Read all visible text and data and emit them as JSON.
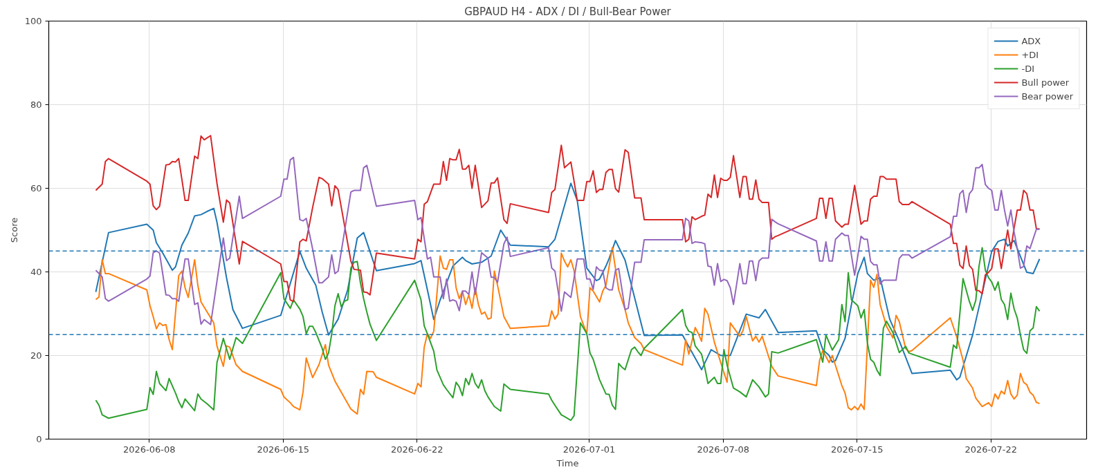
{
  "chart_data": {
    "type": "line",
    "title": "GBPAUD H4 - ADX / DI / Bull-Bear Power",
    "xlabel": "Time",
    "ylabel": "Score",
    "xlim": [
      "2026-06-02T18:00",
      "2026-07-27T00:00"
    ],
    "xticks": [
      "2026-06-08",
      "2026-06-15",
      "2026-06-22",
      "2026-07-01",
      "2026-07-08",
      "2026-07-15",
      "2026-07-22"
    ],
    "ylim": [
      0,
      100
    ],
    "yticks": [
      0,
      20,
      40,
      60,
      80,
      100
    ],
    "grid": true,
    "legend": "top right",
    "line_style": "solid",
    "ref_lines": [
      {
        "axis": "y",
        "value": 45,
        "color": "#1f77b4",
        "line_style": "dashed"
      },
      {
        "axis": "y",
        "value": 25,
        "color": "#1f77b4",
        "line_style": "dashed"
      }
    ],
    "series": [
      {
        "name": "ADX",
        "color": "#1f77b4",
        "x": [
          "2026-06-05T05:00",
          "2026-06-05T21:00",
          "2026-06-07T21:00",
          "2026-06-08T01:00",
          "2026-06-08T05:00",
          "2026-06-08T09:00",
          "2026-06-08T17:00",
          "2026-06-09T05:00",
          "2026-06-09T09:00",
          "2026-06-09T17:00",
          "2026-06-10T01:00",
          "2026-06-10T09:00",
          "2026-06-10T17:00",
          "2026-06-11T01:00",
          "2026-06-11T09:00",
          "2026-06-11T13:00",
          "2026-06-12T01:00",
          "2026-06-12T09:00",
          "2026-06-12T21:00",
          "2026-06-14T21:00",
          "2026-06-15T21:00",
          "2026-06-16T05:00",
          "2026-06-16T17:00",
          "2026-06-17T01:00",
          "2026-06-17T09:00",
          "2026-06-17T21:00",
          "2026-06-18T09:00",
          "2026-06-18T21:00",
          "2026-06-19T05:00",
          "2026-06-19T21:00",
          "2026-06-21T21:00",
          "2026-06-22T05:00",
          "2026-06-22T13:00",
          "2026-06-22T21:00",
          "2026-06-23T05:00",
          "2026-06-23T21:00",
          "2026-06-24T09:00",
          "2026-06-24T13:00",
          "2026-06-24T21:00",
          "2026-06-25T09:00",
          "2026-06-25T21:00",
          "2026-06-26T09:00",
          "2026-06-26T21:00",
          "2026-06-28T21:00",
          "2026-06-29T05:00",
          "2026-06-30T01:00",
          "2026-06-30T09:00",
          "2026-06-30T21:00",
          "2026-07-01T09:00",
          "2026-07-01T13:00",
          "2026-07-01T21:00",
          "2026-07-02T01:00",
          "2026-07-02T09:00",
          "2026-07-02T21:00",
          "2026-07-03T21:00",
          "2026-07-05T21:00",
          "2026-07-06T21:00",
          "2026-07-07T09:00",
          "2026-07-07T21:00",
          "2026-07-08T09:00",
          "2026-07-09T05:00",
          "2026-07-09T21:00",
          "2026-07-10T05:00",
          "2026-07-10T21:00",
          "2026-07-12T21:00",
          "2026-07-13T05:00",
          "2026-07-13T13:00",
          "2026-07-13T17:00",
          "2026-07-13T21:00",
          "2026-07-14T09:00",
          "2026-07-14T17:00",
          "2026-07-15T01:00",
          "2026-07-15T09:00",
          "2026-07-15T13:00",
          "2026-07-15T21:00",
          "2026-07-16T05:00",
          "2026-07-16T17:00",
          "2026-07-17T05:00",
          "2026-07-17T21:00",
          "2026-07-19T21:00",
          "2026-07-20T05:00",
          "2026-07-20T09:00",
          "2026-07-21T01:00",
          "2026-07-21T13:00",
          "2026-07-22T01:00",
          "2026-07-22T09:00",
          "2026-07-22T17:00",
          "2026-07-22T21:00",
          "2026-07-23T05:00",
          "2026-07-23T09:00",
          "2026-07-23T21:00",
          "2026-07-24T05:00",
          "2026-07-24T13:00"
        ],
        "values": [
          35.2,
          49.4,
          51.4,
          50.7,
          50,
          47,
          44.5,
          40.4,
          41.2,
          46.4,
          49.3,
          53.4,
          53.7,
          54.5,
          55.2,
          51.9,
          38.6,
          31,
          26.5,
          29.6,
          44.9,
          40.9,
          36.8,
          30.4,
          24.9,
          28.7,
          35.7,
          48.1,
          49.4,
          40.3,
          42,
          42.7,
          35.7,
          28.6,
          33.3,
          41.4,
          43.5,
          42.7,
          41.9,
          42.3,
          43.8,
          50,
          46.4,
          46,
          47.8,
          61.2,
          57.1,
          40.9,
          37.9,
          38.3,
          41.4,
          43.2,
          47.5,
          42.8,
          24.8,
          24.9,
          16.6,
          21.4,
          20,
          20,
          29.9,
          29,
          31,
          25.5,
          25.9,
          21.4,
          20,
          18.4,
          18.8,
          24.1,
          32.2,
          39.6,
          43.5,
          39.6,
          38,
          38.6,
          28.7,
          23.5,
          15.7,
          16.5,
          14.2,
          14.8,
          24.9,
          34.9,
          44.9,
          47.3,
          47.8,
          46.2,
          47.5,
          45.6,
          39.9,
          39.6,
          43.1
        ]
      },
      {
        "name": "+DI",
        "color": "#ff7f0e",
        "x": [
          "2026-06-05T05:00",
          "2026-06-05T09:00",
          "2026-06-05T13:00",
          "2026-06-05T17:00",
          "2026-06-05T21:00",
          "2026-06-07T21:00",
          "2026-06-08T01:00",
          "2026-06-08T05:00",
          "2026-06-08T09:00",
          "2026-06-08T13:00",
          "2026-06-08T17:00",
          "2026-06-08T21:00",
          "2026-06-09T01:00",
          "2026-06-09T05:00",
          "2026-06-09T13:00",
          "2026-06-09T17:00",
          "2026-06-09T21:00",
          "2026-06-10T01:00",
          "2026-06-10T09:00",
          "2026-06-10T13:00",
          "2026-06-10T17:00",
          "2026-06-11T09:00",
          "2026-06-11T13:00",
          "2026-06-11T21:00",
          "2026-06-12T01:00",
          "2026-06-12T05:00",
          "2026-06-12T13:00",
          "2026-06-12T21:00",
          "2026-06-14T21:00",
          "2026-06-15T01:00",
          "2026-06-15T09:00",
          "2026-06-15T13:00",
          "2026-06-15T21:00",
          "2026-06-16T01:00",
          "2026-06-16T05:00",
          "2026-06-16T13:00",
          "2026-06-16T21:00",
          "2026-06-17T05:00",
          "2026-06-17T09:00",
          "2026-06-17T17:00",
          "2026-06-18T13:00",
          "2026-06-18T21:00",
          "2026-06-19T01:00",
          "2026-06-19T05:00",
          "2026-06-19T09:00",
          "2026-06-19T17:00",
          "2026-06-19T21:00",
          "2026-06-21T21:00",
          "2026-06-22T01:00",
          "2026-06-22T05:00",
          "2026-06-22T09:00",
          "2026-06-22T13:00",
          "2026-06-22T17:00",
          "2026-06-22T21:00",
          "2026-06-23T05:00",
          "2026-06-23T09:00",
          "2026-06-23T13:00",
          "2026-06-23T17:00",
          "2026-06-23T21:00",
          "2026-06-24T01:00",
          "2026-06-24T05:00",
          "2026-06-24T09:00",
          "2026-06-24T13:00",
          "2026-06-24T17:00",
          "2026-06-24T21:00",
          "2026-06-25T01:00",
          "2026-06-25T05:00",
          "2026-06-25T09:00",
          "2026-06-25T13:00",
          "2026-06-25T17:00",
          "2026-06-25T21:00",
          "2026-06-26T01:00",
          "2026-06-26T05:00",
          "2026-06-26T13:00",
          "2026-06-26T21:00",
          "2026-06-28T21:00",
          "2026-06-29T01:00",
          "2026-06-29T05:00",
          "2026-06-29T09:00",
          "2026-06-29T13:00",
          "2026-06-29T17:00",
          "2026-06-29T21:00",
          "2026-06-30T01:00",
          "2026-06-30T05:00",
          "2026-06-30T13:00",
          "2026-06-30T21:00",
          "2026-07-01T01:00",
          "2026-07-01T05:00",
          "2026-07-01T13:00",
          "2026-07-01T17:00",
          "2026-07-01T21:00",
          "2026-07-02T05:00",
          "2026-07-02T13:00",
          "2026-07-02T21:00",
          "2026-07-03T01:00",
          "2026-07-03T09:00",
          "2026-07-03T17:00",
          "2026-07-03T21:00",
          "2026-07-05T21:00",
          "2026-07-06T01:00",
          "2026-07-06T05:00",
          "2026-07-06T13:00",
          "2026-07-06T17:00",
          "2026-07-06T21:00",
          "2026-07-07T01:00",
          "2026-07-07T05:00",
          "2026-07-07T13:00",
          "2026-07-07T21:00",
          "2026-07-08T05:00",
          "2026-07-08T09:00",
          "2026-07-08T21:00",
          "2026-07-09T01:00",
          "2026-07-09T05:00",
          "2026-07-09T13:00",
          "2026-07-09T17:00",
          "2026-07-09T21:00",
          "2026-07-10T01:00",
          "2026-07-10T13:00",
          "2026-07-10T21:00",
          "2026-07-12T21:00",
          "2026-07-13T01:00",
          "2026-07-13T05:00",
          "2026-07-13T13:00",
          "2026-07-13T17:00",
          "2026-07-14T05:00",
          "2026-07-14T09:00",
          "2026-07-14T13:00",
          "2026-07-14T17:00",
          "2026-07-14T21:00",
          "2026-07-15T01:00",
          "2026-07-15T05:00",
          "2026-07-15T09:00",
          "2026-07-15T17:00",
          "2026-07-15T21:00",
          "2026-07-16T01:00",
          "2026-07-16T05:00",
          "2026-07-16T13:00",
          "2026-07-16T21:00",
          "2026-07-17T01:00",
          "2026-07-17T05:00",
          "2026-07-17T13:00",
          "2026-07-17T17:00",
          "2026-07-17T21:00",
          "2026-07-19T21:00",
          "2026-07-20T05:00",
          "2026-07-20T13:00",
          "2026-07-20T17:00",
          "2026-07-21T01:00",
          "2026-07-21T05:00",
          "2026-07-21T13:00",
          "2026-07-21T21:00",
          "2026-07-22T01:00",
          "2026-07-22T05:00",
          "2026-07-22T09:00",
          "2026-07-22T13:00",
          "2026-07-22T17:00",
          "2026-07-22T21:00",
          "2026-07-23T01:00",
          "2026-07-23T05:00",
          "2026-07-23T09:00",
          "2026-07-23T13:00",
          "2026-07-23T17:00",
          "2026-07-23T21:00",
          "2026-07-24T01:00",
          "2026-07-24T05:00",
          "2026-07-24T09:00",
          "2026-07-24T13:00"
        ],
        "values": [
          33.4,
          34,
          42.9,
          39.6,
          39.6,
          35.7,
          31.9,
          29.3,
          26.4,
          27.8,
          27.2,
          27.4,
          23.8,
          21.4,
          39.1,
          40.2,
          36.2,
          33.9,
          42.9,
          36.8,
          32.8,
          27.8,
          22.3,
          17.4,
          22.3,
          22,
          17.8,
          16.2,
          11.9,
          10.1,
          8.7,
          7.8,
          7,
          11.3,
          19.4,
          14.7,
          17.8,
          22.6,
          17.7,
          13.9,
          7.2,
          6,
          11.9,
          10.7,
          16.2,
          16.1,
          14.8,
          10.8,
          13.3,
          12.5,
          22,
          25.2,
          24.1,
          25.8,
          43.8,
          40.9,
          40.6,
          42.9,
          42.9,
          36.2,
          33.6,
          35.4,
          32.2,
          34.5,
          31.3,
          36.2,
          32.2,
          29.9,
          30.4,
          28.7,
          29,
          40.2,
          36.8,
          29.3,
          26.5,
          27.1,
          30.7,
          28.7,
          29.9,
          44.5,
          42.6,
          41.2,
          42.9,
          40.3,
          29.3,
          25.2,
          36.2,
          35.4,
          32.8,
          35.4,
          36.8,
          45.8,
          35.7,
          31,
          27.8,
          24.3,
          22.9,
          21.4,
          17.7,
          23.8,
          20.3,
          26.7,
          25.2,
          23.4,
          31.3,
          29.9,
          23.2,
          18.3,
          13.6,
          27.8,
          24.6,
          26,
          29.3,
          23.5,
          24.6,
          23.2,
          24.6,
          17.4,
          15.1,
          12.8,
          18.8,
          21.2,
          18.3,
          20,
          12.8,
          11,
          7.5,
          7,
          7.8,
          7,
          8.4,
          7.1,
          38,
          36.3,
          39.4,
          32.2,
          27,
          24.2,
          29.6,
          28.1,
          21.7,
          20.9,
          21.2,
          29,
          24.5,
          18.9,
          14.5,
          12.2,
          9.8,
          7.8,
          8.7,
          7.8,
          10.8,
          9.6,
          11.5,
          10.8,
          14,
          10.8,
          9.6,
          10.5,
          15.7,
          13.6,
          13,
          11.2,
          10.5,
          8.8,
          8.5
        ]
      },
      {
        "name": "-DI",
        "color": "#2ca02c",
        "x": [
          "2026-06-05T05:00",
          "2026-06-05T09:00",
          "2026-06-05T13:00",
          "2026-06-05T21:00",
          "2026-06-07T21:00",
          "2026-06-08T01:00",
          "2026-06-08T05:00",
          "2026-06-08T09:00",
          "2026-06-08T13:00",
          "2026-06-08T21:00",
          "2026-06-09T01:00",
          "2026-06-09T09:00",
          "2026-06-09T13:00",
          "2026-06-09T17:00",
          "2026-06-09T21:00",
          "2026-06-10T09:00",
          "2026-06-10T13:00",
          "2026-06-10T17:00",
          "2026-06-11T01:00",
          "2026-06-11T09:00",
          "2026-06-11T13:00",
          "2026-06-11T21:00",
          "2026-06-12T05:00",
          "2026-06-12T13:00",
          "2026-06-12T21:00",
          "2026-06-14T21:00",
          "2026-06-15T01:00",
          "2026-06-15T09:00",
          "2026-06-15T13:00",
          "2026-06-15T21:00",
          "2026-06-16T01:00",
          "2026-06-16T05:00",
          "2026-06-16T09:00",
          "2026-06-16T13:00",
          "2026-06-16T17:00",
          "2026-06-17T01:00",
          "2026-06-17T05:00",
          "2026-06-17T09:00",
          "2026-06-17T13:00",
          "2026-06-17T17:00",
          "2026-06-17T21:00",
          "2026-06-18T01:00",
          "2026-06-18T05:00",
          "2026-06-18T09:00",
          "2026-06-18T13:00",
          "2026-06-18T17:00",
          "2026-06-18T21:00",
          "2026-06-19T01:00",
          "2026-06-19T05:00",
          "2026-06-19T09:00",
          "2026-06-19T13:00",
          "2026-06-19T21:00",
          "2026-06-21T21:00",
          "2026-06-22T05:00",
          "2026-06-22T09:00",
          "2026-06-22T13:00",
          "2026-06-22T21:00",
          "2026-06-23T01:00",
          "2026-06-23T09:00",
          "2026-06-23T13:00",
          "2026-06-23T21:00",
          "2026-06-24T01:00",
          "2026-06-24T05:00",
          "2026-06-24T09:00",
          "2026-06-24T13:00",
          "2026-06-24T17:00",
          "2026-06-24T21:00",
          "2026-06-25T01:00",
          "2026-06-25T05:00",
          "2026-06-25T09:00",
          "2026-06-25T13:00",
          "2026-06-25T17:00",
          "2026-06-26T01:00",
          "2026-06-26T09:00",
          "2026-06-26T13:00",
          "2026-06-26T21:00",
          "2026-06-28T21:00",
          "2026-06-29T01:00",
          "2026-06-29T05:00",
          "2026-06-29T13:00",
          "2026-06-29T17:00",
          "2026-06-30T01:00",
          "2026-06-30T05:00",
          "2026-06-30T13:00",
          "2026-06-30T21:00",
          "2026-07-01T01:00",
          "2026-07-01T05:00",
          "2026-07-01T13:00",
          "2026-07-01T21:00",
          "2026-07-02T01:00",
          "2026-07-02T05:00",
          "2026-07-02T09:00",
          "2026-07-02T13:00",
          "2026-07-02T17:00",
          "2026-07-02T21:00",
          "2026-07-03T05:00",
          "2026-07-03T09:00",
          "2026-07-03T13:00",
          "2026-07-03T17:00",
          "2026-07-03T21:00",
          "2026-07-05T21:00",
          "2026-07-06T01:00",
          "2026-07-06T05:00",
          "2026-07-06T09:00",
          "2026-07-06T13:00",
          "2026-07-06T21:00",
          "2026-07-07T01:00",
          "2026-07-07T05:00",
          "2026-07-07T13:00",
          "2026-07-07T17:00",
          "2026-07-07T21:00",
          "2026-07-08T01:00",
          "2026-07-08T05:00",
          "2026-07-08T13:00",
          "2026-07-08T21:00",
          "2026-07-09T05:00",
          "2026-07-09T13:00",
          "2026-07-09T21:00",
          "2026-07-10T05:00",
          "2026-07-10T09:00",
          "2026-07-10T13:00",
          "2026-07-10T21:00",
          "2026-07-12T21:00",
          "2026-07-13T05:00",
          "2026-07-13T09:00",
          "2026-07-13T17:00",
          "2026-07-14T01:00",
          "2026-07-14T05:00",
          "2026-07-14T09:00",
          "2026-07-14T13:00",
          "2026-07-14T17:00",
          "2026-07-15T01:00",
          "2026-07-15T05:00",
          "2026-07-15T09:00",
          "2026-07-15T13:00",
          "2026-07-15T17:00",
          "2026-07-15T21:00",
          "2026-07-16T01:00",
          "2026-07-16T05:00",
          "2026-07-16T09:00",
          "2026-07-16T13:00",
          "2026-07-16T21:00",
          "2026-07-17T05:00",
          "2026-07-17T13:00",
          "2026-07-17T17:00",
          "2026-07-19T21:00",
          "2026-07-20T01:00",
          "2026-07-20T05:00",
          "2026-07-20T13:00",
          "2026-07-20T21:00",
          "2026-07-21T01:00",
          "2026-07-21T05:00",
          "2026-07-21T09:00",
          "2026-07-21T13:00",
          "2026-07-21T17:00",
          "2026-07-21T21:00",
          "2026-07-22T01:00",
          "2026-07-22T05:00",
          "2026-07-22T09:00",
          "2026-07-22T13:00",
          "2026-07-22T17:00",
          "2026-07-22T21:00",
          "2026-07-23T01:00",
          "2026-07-23T05:00",
          "2026-07-23T09:00",
          "2026-07-23T13:00",
          "2026-07-23T17:00",
          "2026-07-23T21:00",
          "2026-07-24T01:00",
          "2026-07-24T05:00",
          "2026-07-24T09:00",
          "2026-07-24T13:00"
        ],
        "values": [
          9.3,
          8.1,
          5.8,
          5,
          7.1,
          12.3,
          10.7,
          16.2,
          13.3,
          11.6,
          14.5,
          11,
          9,
          7.5,
          9.6,
          6.8,
          10.8,
          9.6,
          8.4,
          7,
          18.3,
          24.1,
          19.1,
          24.3,
          22.9,
          39.8,
          33.6,
          31.3,
          33.3,
          31.1,
          29.3,
          25.2,
          27,
          27,
          25.5,
          21.7,
          19.1,
          20.6,
          25.2,
          31.9,
          34.8,
          31.6,
          33,
          33.3,
          40.9,
          42.3,
          42.5,
          37.4,
          33.6,
          30.4,
          27.5,
          23.6,
          38,
          33.3,
          27.1,
          25.2,
          21,
          16.5,
          13,
          11.9,
          9.9,
          13.6,
          12.5,
          10.4,
          14.5,
          13,
          15.7,
          13.3,
          12.2,
          14.2,
          11.6,
          10.1,
          7.8,
          6.7,
          13.2,
          11.9,
          10.8,
          9.3,
          8.1,
          5.8,
          5.4,
          4.5,
          5.6,
          27.8,
          25.2,
          20.6,
          19.1,
          14.2,
          10.8,
          10.7,
          8.1,
          7.1,
          18.1,
          17.2,
          16.6,
          21.4,
          22,
          20.9,
          20,
          21.7,
          31,
          27.2,
          25.8,
          25.5,
          22.3,
          20.3,
          17.1,
          13.3,
          14.8,
          13.3,
          13.3,
          21.4,
          17.7,
          12.2,
          11.3,
          10.1,
          14.2,
          12.5,
          10.1,
          10.8,
          20.9,
          20.6,
          23.8,
          18.4,
          24.9,
          21.3,
          23.8,
          32.2,
          28.1,
          39.8,
          33.3,
          31.9,
          29,
          31,
          23,
          19.1,
          18.4,
          16.5,
          15.2,
          26.5,
          28.2,
          25.5,
          20.7,
          22.2,
          20.6,
          17.2,
          22.5,
          21.7,
          38.4,
          32.9,
          30.8,
          33.2,
          41.3,
          45.8,
          40.4,
          38.6,
          37.6,
          35.6,
          37.6,
          33.4,
          32.2,
          28.6,
          34.9,
          31.2,
          29,
          24.9,
          21.4,
          20.5,
          25.9,
          26.6,
          31.7,
          30.6
        ]
      },
      {
        "name": "Bull power",
        "color": "#d62728",
        "x": [
          "2026-06-05T05:00",
          "2026-06-05T13:00",
          "2026-06-05T17:00",
          "2026-06-05T21:00",
          "2026-06-07T21:00",
          "2026-06-08T01:00",
          "2026-06-08T05:00",
          "2026-06-08T09:00",
          "2026-06-08T13:00",
          "2026-06-08T21:00",
          "2026-06-09T01:00",
          "2026-06-09T05:00",
          "2026-06-09T09:00",
          "2026-06-09T13:00",
          "2026-06-09T21:00",
          "2026-06-10T01:00",
          "2026-06-10T09:00",
          "2026-06-10T13:00",
          "2026-06-10T17:00",
          "2026-06-10T21:00",
          "2026-06-11T05:00",
          "2026-06-11T13:00",
          "2026-06-11T21:00",
          "2026-06-12T01:00",
          "2026-06-12T05:00",
          "2026-06-12T17:00",
          "2026-06-12T21:00",
          "2026-06-14T21:00",
          "2026-06-15T01:00",
          "2026-06-15T05:00",
          "2026-06-15T09:00",
          "2026-06-15T13:00",
          "2026-06-15T21:00",
          "2026-06-16T01:00",
          "2026-06-16T05:00",
          "2026-06-16T13:00",
          "2026-06-16T21:00",
          "2026-06-17T01:00",
          "2026-06-17T09:00",
          "2026-06-17T13:00",
          "2026-06-17T17:00",
          "2026-06-17T21:00",
          "2026-06-18T13:00",
          "2026-06-18T17:00",
          "2026-06-19T01:00",
          "2026-06-19T05:00",
          "2026-06-19T09:00",
          "2026-06-19T13:00",
          "2026-06-19T21:00",
          "2026-06-21T21:00",
          "2026-06-22T01:00",
          "2026-06-22T05:00",
          "2026-06-22T09:00",
          "2026-06-22T13:00",
          "2026-06-22T21:00",
          "2026-06-23T05:00",
          "2026-06-23T09:00",
          "2026-06-23T13:00",
          "2026-06-23T17:00",
          "2026-06-23T21:00",
          "2026-06-24T01:00",
          "2026-06-24T05:00",
          "2026-06-24T09:00",
          "2026-06-24T13:00",
          "2026-06-24T17:00",
          "2026-06-24T21:00",
          "2026-06-25T01:00",
          "2026-06-25T09:00",
          "2026-06-25T17:00",
          "2026-06-25T21:00",
          "2026-06-26T01:00",
          "2026-06-26T05:00",
          "2026-06-26T13:00",
          "2026-06-26T17:00",
          "2026-06-26T21:00",
          "2026-06-28T21:00",
          "2026-06-29T01:00",
          "2026-06-29T05:00",
          "2026-06-29T13:00",
          "2026-06-29T17:00",
          "2026-06-30T01:00",
          "2026-06-30T09:00",
          "2026-06-30T17:00",
          "2026-06-30T21:00",
          "2026-07-01T01:00",
          "2026-07-01T05:00",
          "2026-07-01T09:00",
          "2026-07-01T13:00",
          "2026-07-01T17:00",
          "2026-07-01T21:00",
          "2026-07-02T01:00",
          "2026-07-02T05:00",
          "2026-07-02T09:00",
          "2026-07-02T13:00",
          "2026-07-02T21:00",
          "2026-07-03T01:00",
          "2026-07-03T09:00",
          "2026-07-03T17:00",
          "2026-07-03T21:00",
          "2026-07-05T21:00",
          "2026-07-06T01:00",
          "2026-07-06T05:00",
          "2026-07-06T09:00",
          "2026-07-06T13:00",
          "2026-07-06T21:00",
          "2026-07-07T01:00",
          "2026-07-07T05:00",
          "2026-07-07T09:00",
          "2026-07-07T13:00",
          "2026-07-07T17:00",
          "2026-07-07T21:00",
          "2026-07-08T01:00",
          "2026-07-08T05:00",
          "2026-07-08T09:00",
          "2026-07-08T13:00",
          "2026-07-08T21:00",
          "2026-07-09T01:00",
          "2026-07-09T05:00",
          "2026-07-09T09:00",
          "2026-07-09T13:00",
          "2026-07-09T17:00",
          "2026-07-09T21:00",
          "2026-07-10T01:00",
          "2026-07-10T09:00",
          "2026-07-10T13:00",
          "2026-07-10T17:00",
          "2026-07-10T21:00",
          "2026-07-12T21:00",
          "2026-07-13T01:00",
          "2026-07-13T05:00",
          "2026-07-13T09:00",
          "2026-07-13T13:00",
          "2026-07-13T17:00",
          "2026-07-13T21:00",
          "2026-07-14T05:00",
          "2026-07-14T09:00",
          "2026-07-14T13:00",
          "2026-07-14T21:00",
          "2026-07-15T05:00",
          "2026-07-15T09:00",
          "2026-07-15T13:00",
          "2026-07-15T17:00",
          "2026-07-15T21:00",
          "2026-07-16T01:00",
          "2026-07-16T05:00",
          "2026-07-16T09:00",
          "2026-07-16T13:00",
          "2026-07-16T17:00",
          "2026-07-16T21:00",
          "2026-07-17T01:00",
          "2026-07-17T05:00",
          "2026-07-17T09:00",
          "2026-07-17T17:00",
          "2026-07-17T21:00",
          "2026-07-19T21:00",
          "2026-07-20T01:00",
          "2026-07-20T05:00",
          "2026-07-20T09:00",
          "2026-07-20T13:00",
          "2026-07-20T17:00",
          "2026-07-20T21:00",
          "2026-07-21T01:00",
          "2026-07-21T05:00",
          "2026-07-21T09:00",
          "2026-07-21T13:00",
          "2026-07-21T17:00",
          "2026-07-21T21:00",
          "2026-07-22T01:00",
          "2026-07-22T05:00",
          "2026-07-22T09:00",
          "2026-07-22T13:00",
          "2026-07-22T17:00",
          "2026-07-22T21:00",
          "2026-07-23T01:00",
          "2026-07-23T05:00",
          "2026-07-23T09:00",
          "2026-07-23T13:00",
          "2026-07-23T17:00",
          "2026-07-23T21:00",
          "2026-07-24T01:00",
          "2026-07-24T05:00",
          "2026-07-24T09:00",
          "2026-07-24T13:00"
        ],
        "values": [
          59.5,
          61,
          66.4,
          67.1,
          61.7,
          61,
          55.8,
          54.9,
          55.7,
          65.6,
          65.7,
          66.4,
          66.3,
          67.1,
          57.1,
          57.1,
          67.7,
          67.1,
          72.5,
          71.6,
          72.6,
          61.2,
          51.9,
          57.2,
          56.5,
          41.9,
          47.3,
          41.9,
          37.7,
          37.7,
          33.3,
          32.9,
          47.2,
          47.8,
          47.4,
          55.4,
          62.6,
          62.3,
          61,
          55.8,
          60.6,
          59.7,
          42.6,
          40.6,
          40.4,
          35.2,
          35.1,
          34.5,
          44.5,
          43.1,
          47.8,
          47.2,
          56.2,
          56.8,
          61,
          61,
          66.4,
          61.9,
          67.1,
          66.8,
          66.8,
          69.3,
          64.6,
          64.6,
          65.5,
          60,
          65.5,
          55.4,
          57,
          61.3,
          61.3,
          62.5,
          52.5,
          51.6,
          56.3,
          54.2,
          59,
          59.7,
          70.3,
          64.9,
          66.3,
          57.1,
          57.1,
          61.6,
          61.6,
          64.2,
          59,
          59.7,
          59.7,
          63.8,
          64.5,
          64.5,
          59.9,
          59.1,
          69.2,
          68.6,
          57.7,
          57.7,
          52.5,
          52.5,
          47.2,
          47.8,
          53.2,
          52.5,
          53.3,
          53.6,
          58.6,
          57.8,
          63.2,
          57.8,
          62.4,
          61.9,
          61.9,
          62.6,
          67.8,
          57.8,
          62.8,
          62.8,
          57.4,
          57.4,
          62,
          57.4,
          56.6,
          56.6,
          47.8,
          48.4,
          48.7,
          52.8,
          57.6,
          57.6,
          52.8,
          57.6,
          57.6,
          52.2,
          50.7,
          51.4,
          51.4,
          60.7,
          51.4,
          52.2,
          52.2,
          57.4,
          58.1,
          58.1,
          62.8,
          62.8,
          62.2,
          62.2,
          62.2,
          62.2,
          56.8,
          56.1,
          56.1,
          56.8,
          51.4,
          46.8,
          46.8,
          41.6,
          40.8,
          46.2,
          41.5,
          40.6,
          35.6,
          35.5,
          34.8,
          39.3,
          39.9,
          40.8,
          45.5,
          45.5,
          40.8,
          45.6,
          50,
          45.5,
          50.4,
          54.8,
          54.8,
          59.5,
          58.7,
          54.8,
          54.8,
          50.3,
          50.3
        ]
      },
      {
        "name": "Bear power",
        "color": "#9467bd",
        "x": [
          "2026-06-05T05:00",
          "2026-06-05T13:00",
          "2026-06-05T17:00",
          "2026-06-05T21:00",
          "2026-06-07T21:00",
          "2026-06-08T01:00",
          "2026-06-08T05:00",
          "2026-06-08T09:00",
          "2026-06-08T13:00",
          "2026-06-08T21:00",
          "2026-06-09T01:00",
          "2026-06-09T05:00",
          "2026-06-09T09:00",
          "2026-06-09T13:00",
          "2026-06-09T21:00",
          "2026-06-10T01:00",
          "2026-06-10T09:00",
          "2026-06-10T13:00",
          "2026-06-10T17:00",
          "2026-06-10T21:00",
          "2026-06-11T05:00",
          "2026-06-11T13:00",
          "2026-06-11T21:00",
          "2026-06-12T01:00",
          "2026-06-12T05:00",
          "2026-06-12T17:00",
          "2026-06-12T21:00",
          "2026-06-14T21:00",
          "2026-06-15T01:00",
          "2026-06-15T05:00",
          "2026-06-15T09:00",
          "2026-06-15T13:00",
          "2026-06-15T21:00",
          "2026-06-16T01:00",
          "2026-06-16T05:00",
          "2026-06-16T13:00",
          "2026-06-16T21:00",
          "2026-06-17T01:00",
          "2026-06-17T09:00",
          "2026-06-17T13:00",
          "2026-06-17T17:00",
          "2026-06-17T21:00",
          "2026-06-18T13:00",
          "2026-06-18T17:00",
          "2026-06-19T01:00",
          "2026-06-19T05:00",
          "2026-06-19T09:00",
          "2026-06-19T21:00",
          "2026-06-21T21:00",
          "2026-06-22T01:00",
          "2026-06-22T05:00",
          "2026-06-22T13:00",
          "2026-06-22T17:00",
          "2026-06-22T21:00",
          "2026-06-23T05:00",
          "2026-06-23T09:00",
          "2026-06-23T13:00",
          "2026-06-23T17:00",
          "2026-06-23T21:00",
          "2026-06-24T01:00",
          "2026-06-24T05:00",
          "2026-06-24T09:00",
          "2026-06-24T13:00",
          "2026-06-24T17:00",
          "2026-06-24T21:00",
          "2026-06-25T01:00",
          "2026-06-25T09:00",
          "2026-06-25T17:00",
          "2026-06-25T21:00",
          "2026-06-26T01:00",
          "2026-06-26T05:00",
          "2026-06-26T13:00",
          "2026-06-26T17:00",
          "2026-06-26T21:00",
          "2026-06-28T21:00",
          "2026-06-29T01:00",
          "2026-06-29T05:00",
          "2026-06-29T13:00",
          "2026-06-29T17:00",
          "2026-06-30T01:00",
          "2026-06-30T09:00",
          "2026-06-30T17:00",
          "2026-06-30T21:00",
          "2026-07-01T01:00",
          "2026-07-01T05:00",
          "2026-07-01T09:00",
          "2026-07-01T13:00",
          "2026-07-01T17:00",
          "2026-07-01T21:00",
          "2026-07-02T01:00",
          "2026-07-02T05:00",
          "2026-07-02T09:00",
          "2026-07-02T13:00",
          "2026-07-02T21:00",
          "2026-07-03T01:00",
          "2026-07-03T09:00",
          "2026-07-03T17:00",
          "2026-07-03T21:00",
          "2026-07-05T21:00",
          "2026-07-06T01:00",
          "2026-07-06T05:00",
          "2026-07-06T09:00",
          "2026-07-06T13:00",
          "2026-07-06T21:00",
          "2026-07-07T01:00",
          "2026-07-07T05:00",
          "2026-07-07T09:00",
          "2026-07-07T13:00",
          "2026-07-07T17:00",
          "2026-07-07T21:00",
          "2026-07-08T01:00",
          "2026-07-08T05:00",
          "2026-07-08T09:00",
          "2026-07-08T13:00",
          "2026-07-08T21:00",
          "2026-07-09T01:00",
          "2026-07-09T05:00",
          "2026-07-09T09:00",
          "2026-07-09T13:00",
          "2026-07-09T17:00",
          "2026-07-09T21:00",
          "2026-07-10T01:00",
          "2026-07-10T09:00",
          "2026-07-10T13:00",
          "2026-07-10T17:00",
          "2026-07-10T21:00",
          "2026-07-12T21:00",
          "2026-07-13T01:00",
          "2026-07-13T05:00",
          "2026-07-13T09:00",
          "2026-07-13T13:00",
          "2026-07-13T17:00",
          "2026-07-13T21:00",
          "2026-07-14T05:00",
          "2026-07-14T09:00",
          "2026-07-14T13:00",
          "2026-07-14T21:00",
          "2026-07-15T05:00",
          "2026-07-15T09:00",
          "2026-07-15T13:00",
          "2026-07-15T17:00",
          "2026-07-15T21:00",
          "2026-07-16T01:00",
          "2026-07-16T05:00",
          "2026-07-16T09:00",
          "2026-07-16T13:00",
          "2026-07-16T17:00",
          "2026-07-16T21:00",
          "2026-07-17T01:00",
          "2026-07-17T05:00",
          "2026-07-17T09:00",
          "2026-07-17T17:00",
          "2026-07-17T21:00",
          "2026-07-19T21:00",
          "2026-07-20T01:00",
          "2026-07-20T05:00",
          "2026-07-20T09:00",
          "2026-07-20T13:00",
          "2026-07-20T17:00",
          "2026-07-20T21:00",
          "2026-07-21T01:00",
          "2026-07-21T05:00",
          "2026-07-21T09:00",
          "2026-07-21T13:00",
          "2026-07-21T17:00",
          "2026-07-21T21:00",
          "2026-07-22T01:00",
          "2026-07-22T05:00",
          "2026-07-22T09:00",
          "2026-07-22T13:00",
          "2026-07-22T17:00",
          "2026-07-22T21:00",
          "2026-07-23T01:00",
          "2026-07-23T05:00",
          "2026-07-23T09:00",
          "2026-07-23T13:00",
          "2026-07-23T17:00",
          "2026-07-23T21:00",
          "2026-07-24T01:00",
          "2026-07-24T09:00",
          "2026-07-24T13:00"
        ],
        "values": [
          40.4,
          38.8,
          33.6,
          33,
          38.3,
          39,
          44.6,
          45,
          44.5,
          34.5,
          34.4,
          33.6,
          33.6,
          33,
          43.1,
          43.1,
          32.2,
          32.6,
          27.5,
          28.6,
          27.4,
          37.8,
          48.1,
          42.7,
          43.3,
          58.1,
          52.8,
          58.1,
          62.2,
          62.2,
          66.8,
          67.4,
          52.5,
          52.2,
          52.8,
          45.5,
          37.4,
          37.4,
          38.8,
          44.1,
          39.6,
          40.2,
          59.1,
          59.5,
          59.5,
          64.9,
          65.5,
          55.7,
          57.1,
          52.5,
          53,
          43.1,
          43.5,
          38.8,
          38.8,
          33.6,
          38.3,
          33,
          33.3,
          33,
          30.7,
          35.4,
          35.4,
          34.6,
          40,
          34.6,
          44.6,
          43.3,
          38.7,
          38.7,
          37.5,
          46.7,
          48.3,
          43.7,
          45.8,
          40.9,
          40.2,
          30.6,
          35.2,
          33.9,
          43.1,
          43.1,
          38.3,
          38.3,
          35.8,
          41.2,
          40.4,
          40.3,
          36.2,
          35.7,
          35.7,
          40.4,
          40.8,
          31,
          31.3,
          42.3,
          42.3,
          47.7,
          47.7,
          52.8,
          52.2,
          46.8,
          47.2,
          47,
          46.7,
          41.4,
          41.2,
          36.8,
          42,
          37.7,
          38.2,
          37.9,
          36.2,
          32.2,
          42,
          37.2,
          37.2,
          42.6,
          42.6,
          37.9,
          42.6,
          43.3,
          43.3,
          52.6,
          52,
          51.5,
          47.4,
          42.6,
          42.6,
          47.2,
          42.6,
          42.6,
          47.8,
          49.3,
          48.7,
          48.7,
          39.2,
          48.5,
          47.8,
          47.8,
          42.5,
          41.7,
          41.7,
          37.1,
          38,
          38,
          38,
          38,
          38,
          43.2,
          44.1,
          44.1,
          43.3,
          48.4,
          53.3,
          53.3,
          58.7,
          59.5,
          54.2,
          58.7,
          59.7,
          64.9,
          64.9,
          65.7,
          60.9,
          60,
          59.5,
          54.8,
          54.8,
          59.5,
          54.8,
          51,
          54.8,
          49.6,
          45.6,
          40.9,
          41.3,
          46.2,
          45.6,
          50.2,
          50.2
        ]
      }
    ]
  }
}
